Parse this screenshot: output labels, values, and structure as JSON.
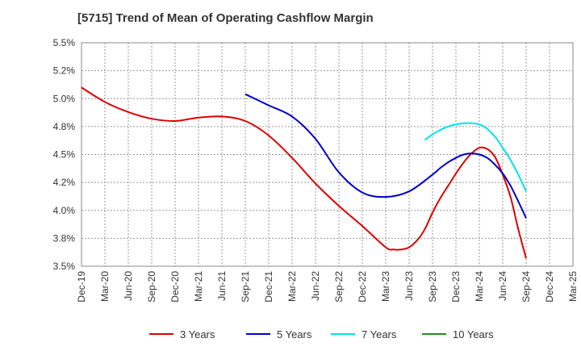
{
  "chart_data": {
    "type": "line",
    "title": "[5715]  Trend of Mean of Operating Cashflow Margin",
    "xlabel": "",
    "ylabel": "",
    "ylim": [
      3.5,
      5.5
    ],
    "yticks": [
      3.5,
      3.75,
      4.0,
      4.25,
      4.5,
      4.75,
      5.0,
      5.25,
      5.5
    ],
    "ytick_labels": [
      "3.5%",
      "3.8%",
      "4.0%",
      "4.2%",
      "4.5%",
      "4.8%",
      "5.0%",
      "5.2%",
      "5.5%"
    ],
    "x_tick_labels": [
      "Dec-19",
      "Mar-20",
      "Jun-20",
      "Sep-20",
      "Dec-20",
      "Mar-21",
      "Jun-21",
      "Sep-21",
      "Dec-21",
      "Mar-22",
      "Jun-22",
      "Sep-22",
      "Dec-22",
      "Mar-23",
      "Jun-23",
      "Sep-23",
      "Dec-23",
      "Mar-24",
      "Jun-24",
      "Sep-24",
      "Dec-24",
      "Mar-25"
    ],
    "grid": true,
    "legend_position": "bottom",
    "series": [
      {
        "name": "3 Years",
        "color": "#dd0000",
        "x": [
          "Dec-19",
          "Mar-20",
          "Jun-20",
          "Sep-20",
          "Dec-20",
          "Mar-21",
          "Jun-21",
          "Sep-21",
          "Dec-21",
          "Mar-22",
          "Jun-22",
          "Sep-22",
          "Dec-22",
          "Mar-23",
          "Apr-23",
          "May-23",
          "Jun-23",
          "Jul-23",
          "Aug-23",
          "Sep-23",
          "Oct-23",
          "Nov-23",
          "Dec-23",
          "Jan-24",
          "Feb-24",
          "Mar-24",
          "Apr-24",
          "May-24",
          "Jun-24",
          "Jul-24",
          "Aug-24",
          "Sep-24"
        ],
        "values": [
          5.1,
          4.97,
          4.88,
          4.82,
          4.8,
          4.83,
          4.84,
          4.8,
          4.67,
          4.47,
          4.24,
          4.04,
          3.86,
          3.67,
          3.65,
          3.65,
          3.67,
          3.73,
          3.83,
          3.98,
          4.11,
          4.22,
          4.33,
          4.43,
          4.51,
          4.56,
          4.55,
          4.48,
          4.32,
          4.12,
          3.83,
          3.57
        ]
      },
      {
        "name": "5 Years",
        "color": "#0000cc",
        "x": [
          "Sep-21",
          "Dec-21",
          "Mar-22",
          "Jun-22",
          "Sep-22",
          "Dec-22",
          "Mar-23",
          "Jun-23",
          "Sep-23",
          "Oct-23",
          "Nov-23",
          "Dec-23",
          "Jan-24",
          "Feb-24",
          "Mar-24",
          "Apr-24",
          "May-24",
          "Jun-24",
          "Jul-24",
          "Aug-24",
          "Sep-24"
        ],
        "values": [
          5.04,
          4.94,
          4.84,
          4.64,
          4.34,
          4.16,
          4.12,
          4.17,
          4.32,
          4.38,
          4.43,
          4.47,
          4.5,
          4.51,
          4.5,
          4.47,
          4.41,
          4.33,
          4.22,
          4.08,
          3.93
        ]
      },
      {
        "name": "7 Years",
        "color": "#00e5ee",
        "x": [
          "Aug-23",
          "Sep-23",
          "Oct-23",
          "Nov-23",
          "Dec-23",
          "Jan-24",
          "Feb-24",
          "Mar-24",
          "Apr-24",
          "May-24",
          "Jun-24",
          "Jul-24",
          "Aug-24",
          "Sep-24"
        ],
        "values": [
          4.63,
          4.68,
          4.72,
          4.75,
          4.77,
          4.78,
          4.78,
          4.77,
          4.73,
          4.66,
          4.56,
          4.45,
          4.32,
          4.17
        ]
      },
      {
        "name": "10 Years",
        "color": "#228b22",
        "x": [],
        "values": []
      }
    ]
  }
}
